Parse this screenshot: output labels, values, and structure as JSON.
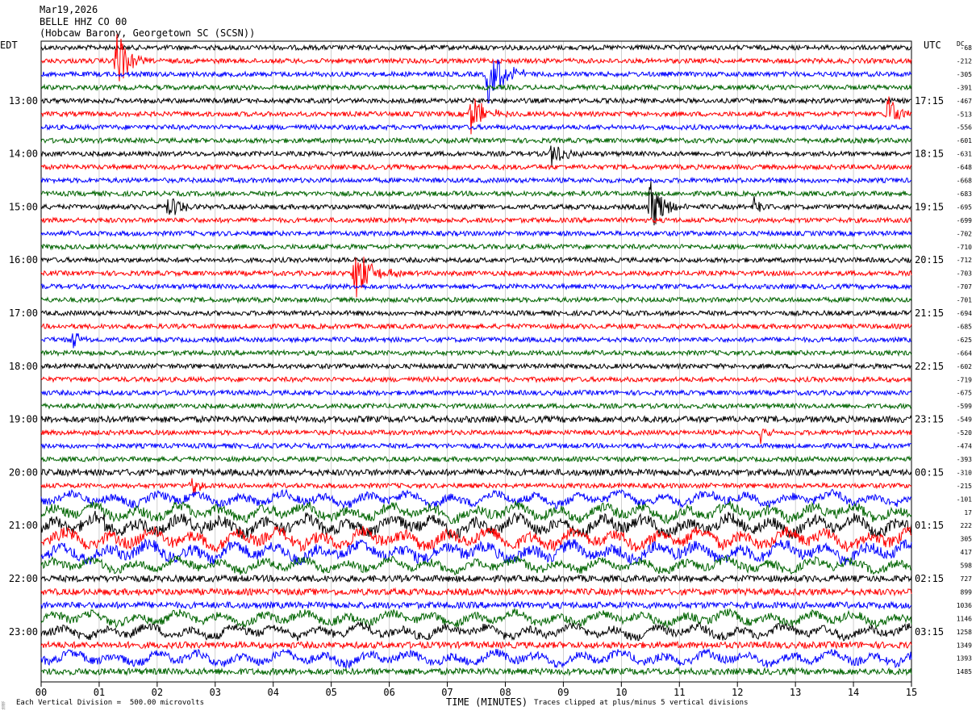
{
  "header": {
    "date": "Mar19,2026",
    "station": "BELLE HHZ CO 00",
    "location": "(Hobcaw Barony, Georgetown SC (SCSN))"
  },
  "chart_data": {
    "type": "seismogram",
    "left_timezone_label": "EDT",
    "right_timezone_label": "UTC",
    "dc_label": "DC",
    "xlabel": "TIME (MINUTES)",
    "xlim": [
      0,
      15
    ],
    "x_ticks": [
      "00",
      "01",
      "02",
      "03",
      "04",
      "05",
      "06",
      "07",
      "08",
      "09",
      "10",
      "11",
      "12",
      "13",
      "14",
      "15"
    ],
    "trace_minutes": 15,
    "trace_count": 48,
    "trace_colors": [
      "#000000",
      "#ff0000",
      "#0000ff",
      "#006400"
    ],
    "left_hour_labels": [
      {
        "trace": 4,
        "label": "13:00"
      },
      {
        "trace": 8,
        "label": "14:00"
      },
      {
        "trace": 12,
        "label": "15:00"
      },
      {
        "trace": 16,
        "label": "16:00"
      },
      {
        "trace": 20,
        "label": "17:00"
      },
      {
        "trace": 24,
        "label": "18:00"
      },
      {
        "trace": 28,
        "label": "19:00"
      },
      {
        "trace": 32,
        "label": "20:00"
      },
      {
        "trace": 36,
        "label": "21:00"
      },
      {
        "trace": 40,
        "label": "22:00"
      },
      {
        "trace": 44,
        "label": "23:00"
      }
    ],
    "right_hour_labels": [
      {
        "trace": 4,
        "label": "17:15"
      },
      {
        "trace": 8,
        "label": "18:15"
      },
      {
        "trace": 12,
        "label": "19:15"
      },
      {
        "trace": 16,
        "label": "20:15"
      },
      {
        "trace": 20,
        "label": "21:15"
      },
      {
        "trace": 24,
        "label": "22:15"
      },
      {
        "trace": 28,
        "label": "23:15"
      },
      {
        "trace": 32,
        "label": "00:15"
      },
      {
        "trace": 36,
        "label": "01:15"
      },
      {
        "trace": 40,
        "label": "02:15"
      },
      {
        "trace": 44,
        "label": "03:15"
      }
    ],
    "dc_offsets": [
      "-68",
      "-212",
      "-305",
      "-391",
      "-467",
      "-513",
      "-556",
      "-601",
      "-631",
      "-648",
      "-668",
      "-683",
      "-695",
      "-699",
      "-702",
      "-710",
      "-712",
      "-703",
      "-707",
      "-701",
      "-694",
      "-685",
      "-625",
      "-664",
      "-602",
      "-719",
      "-675",
      "-599",
      "-549",
      "-520",
      "-474",
      "-393",
      "-310",
      "-215",
      "-101",
      "17",
      "222",
      "305",
      "417",
      "598",
      "727",
      "899",
      "1036",
      "1146",
      "1258",
      "1349",
      "1393",
      "1485"
    ],
    "noise_amplitude": [
      3,
      3,
      3,
      3,
      3,
      3,
      3,
      3,
      3,
      3,
      3,
      3,
      3,
      3,
      3,
      3,
      3,
      3,
      3,
      3,
      3,
      3,
      3,
      3,
      3,
      3,
      3,
      3,
      4,
      3,
      3,
      3,
      4,
      3,
      5,
      6,
      7,
      7,
      7,
      5,
      4,
      4,
      4,
      5,
      5,
      4,
      5,
      4
    ],
    "events": [
      {
        "trace": 1,
        "minute": 1.3,
        "amplitude": 45,
        "duration": 0.5
      },
      {
        "trace": 2,
        "minute": 7.7,
        "amplitude": 40,
        "duration": 0.8
      },
      {
        "trace": 5,
        "minute": 7.4,
        "amplitude": 26,
        "duration": 0.7
      },
      {
        "trace": 5,
        "minute": 14.6,
        "amplitude": 30,
        "duration": 0.4
      },
      {
        "trace": 8,
        "minute": 8.8,
        "amplitude": 18,
        "duration": 0.6
      },
      {
        "trace": 12,
        "minute": 2.2,
        "amplitude": 20,
        "duration": 0.5
      },
      {
        "trace": 12,
        "minute": 10.5,
        "amplitude": 36,
        "duration": 0.7
      },
      {
        "trace": 12,
        "minute": 12.3,
        "amplitude": 22,
        "duration": 0.3
      },
      {
        "trace": 17,
        "minute": 5.4,
        "amplitude": 35,
        "duration": 0.8
      },
      {
        "trace": 22,
        "minute": 0.55,
        "amplitude": 14,
        "duration": 0.3
      },
      {
        "trace": 29,
        "minute": 12.4,
        "amplitude": 14,
        "duration": 0.3
      },
      {
        "trace": 33,
        "minute": 2.6,
        "amplitude": 14,
        "duration": 0.3
      },
      {
        "trace": 36,
        "minute": 0.95,
        "amplitude": 14,
        "duration": 0.5
      }
    ]
  },
  "footer": {
    "scale_note": "Each Vertical Division =  500.00 microvolts",
    "clip_note": "Traces clipped at plus/minus 5 vertical divisions",
    "corner_mark": "░"
  }
}
